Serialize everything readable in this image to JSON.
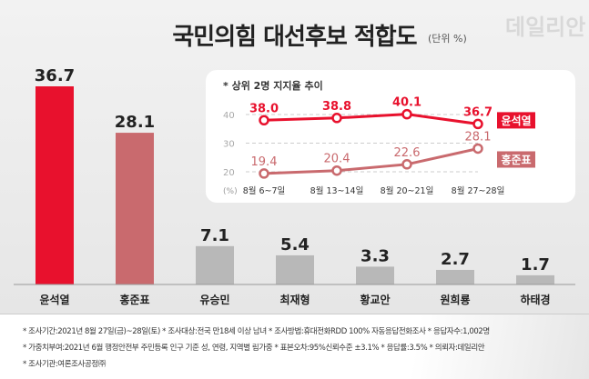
{
  "header": {
    "title": "국민의힘 대선후보 적합도",
    "unit": "(단위 %)",
    "watermark": "데일리안"
  },
  "colors": {
    "primary": "#e8112d",
    "secondary": "#c96a6e",
    "other": "#b8b8b8"
  },
  "chart_data": [
    {
      "type": "bar",
      "categories": [
        "윤석열",
        "홍준표",
        "유승민",
        "최재형",
        "황교안",
        "원희룡",
        "하태경"
      ],
      "values": [
        36.7,
        28.1,
        7.1,
        5.4,
        3.3,
        2.7,
        1.7
      ],
      "colors": [
        "#e8112d",
        "#c96a6e",
        "#b8b8b8",
        "#b8b8b8",
        "#b8b8b8",
        "#b8b8b8",
        "#b8b8b8"
      ],
      "ylim": [
        0,
        40
      ]
    },
    {
      "type": "line",
      "title": "* 상위 2명 지지율 추이",
      "categories": [
        "8월 6~7일",
        "8월 13~14일",
        "8월 20~21일",
        "8월 27~28일"
      ],
      "yticks": [
        "40",
        "30",
        "20"
      ],
      "ytick_values": [
        40,
        30,
        20
      ],
      "yunit": "(%)",
      "ylim": [
        15,
        45
      ],
      "grid": true,
      "series": [
        {
          "name": "윤석열",
          "values": [
            38.0,
            38.8,
            40.1,
            36.7
          ],
          "labels": [
            "38.0",
            "38.8",
            "40.1",
            "36.7"
          ],
          "color": "#e8112d"
        },
        {
          "name": "홍준표",
          "values": [
            19.4,
            20.4,
            22.6,
            28.1
          ],
          "labels": [
            "19.4",
            "20.4",
            "22.6",
            "28.1"
          ],
          "color": "#c96a6e"
        }
      ]
    }
  ],
  "footer": [
    "* 조사기간:2021년 8월 27일(금)~28일(토)  * 조사대상:전국 만18세 이상 남녀  * 조사방법:휴대전화RDD 100% 자동응답전화조사  * 응답자수:1,002명",
    "* 가중치부여:2021년 6월 행정안전부 주민등록 인구 기준 성, 연령, 지역별 림가중  * 표본오차:95%신뢰수준 ±3.1%  * 응답률:3.5%  * 의뢰자:데일리안",
    "* 조사기관:여론조사공정㈜"
  ]
}
